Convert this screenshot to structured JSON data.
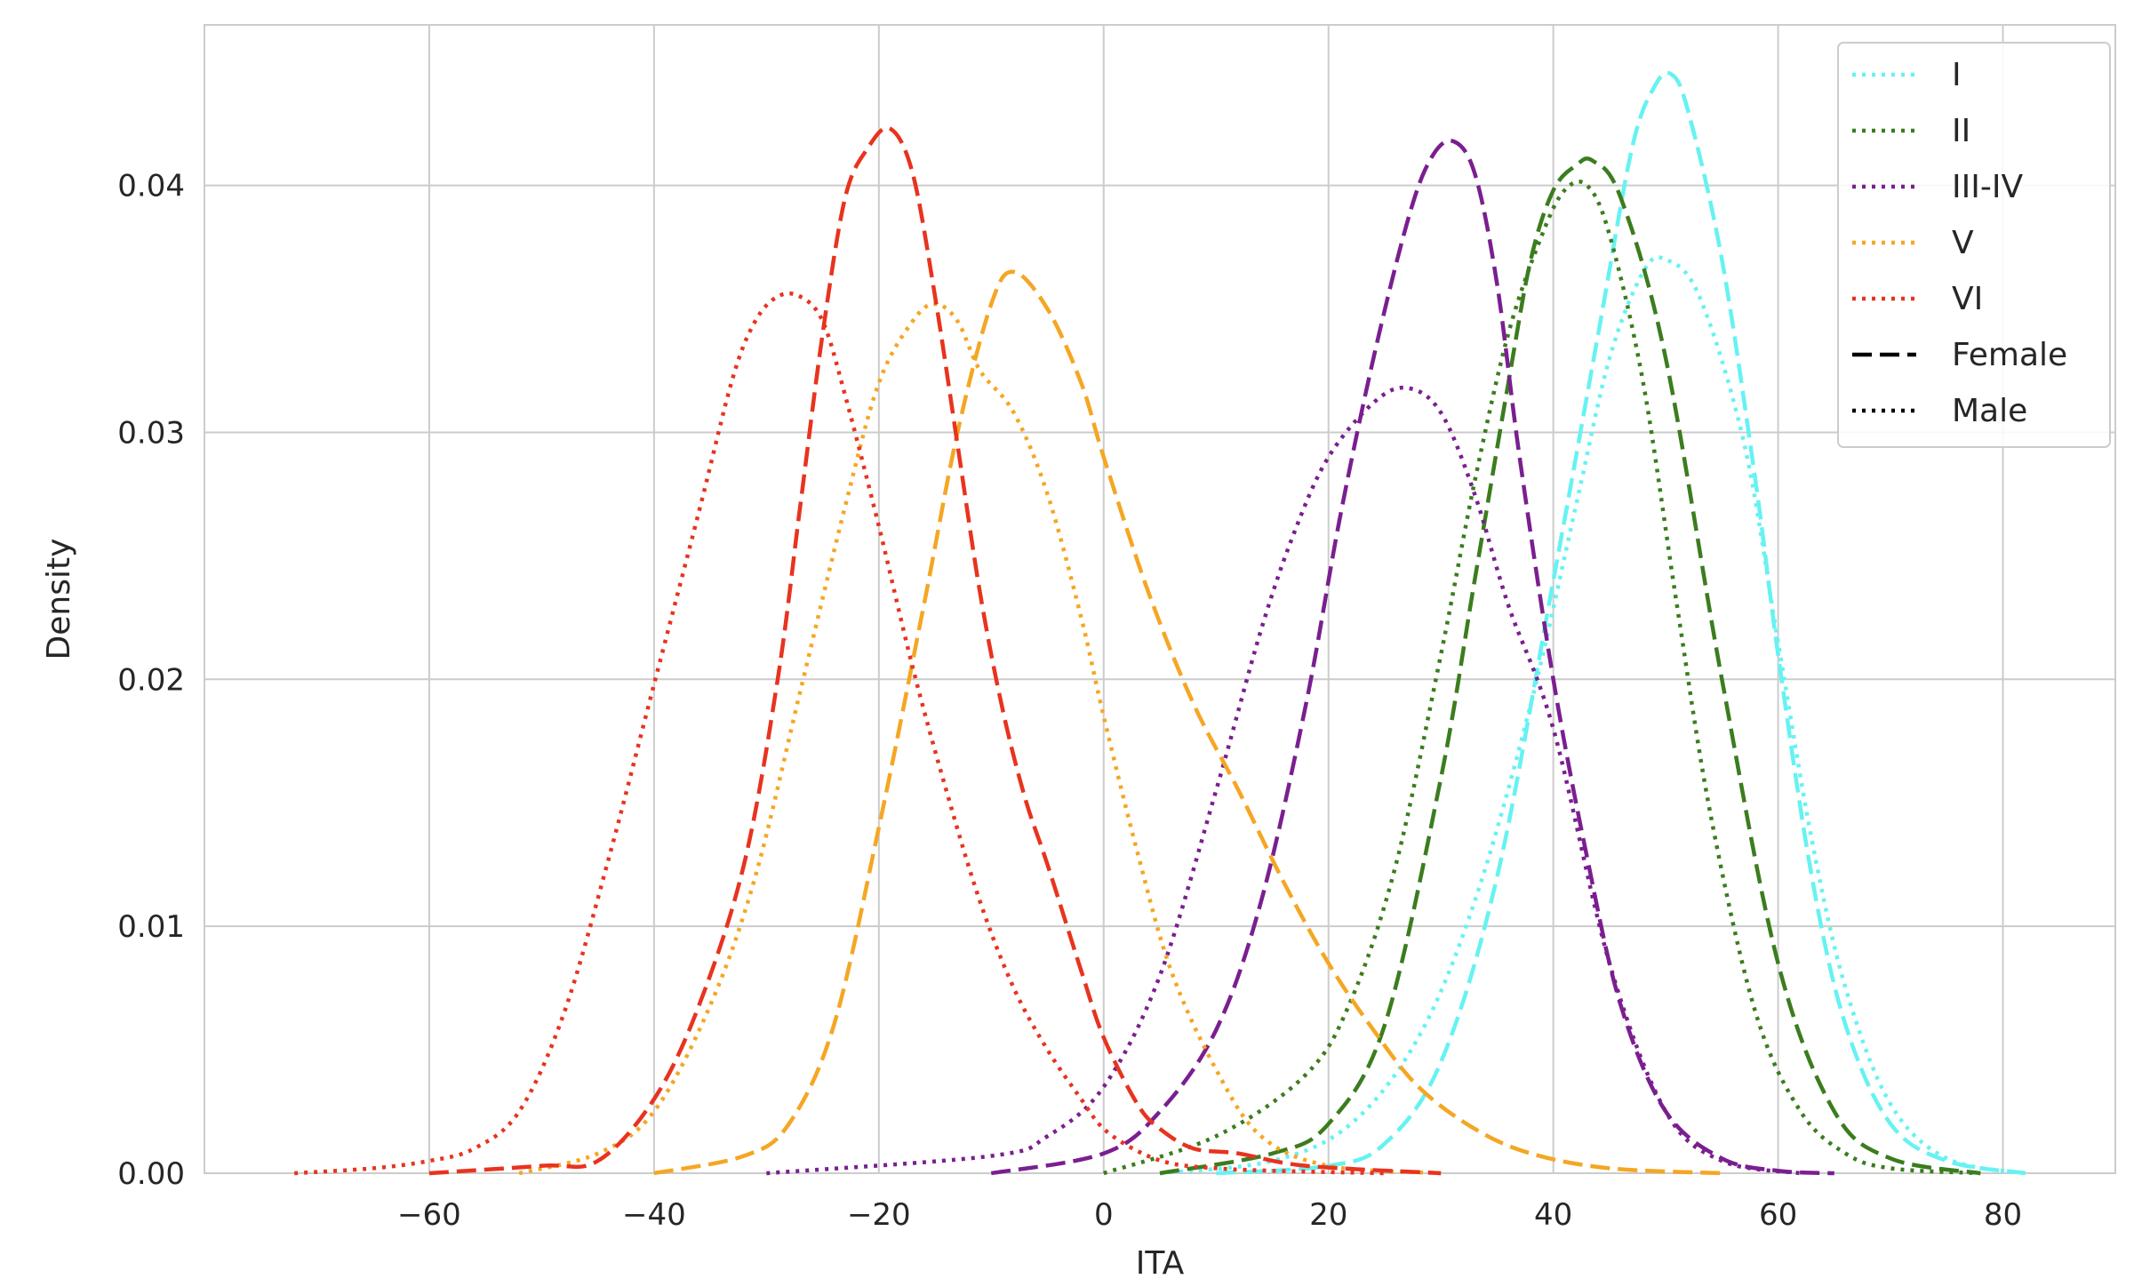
{
  "chart_data": {
    "type": "line",
    "title": "",
    "xlabel": "ITA",
    "ylabel": "Density",
    "xlim": [
      -80,
      90
    ],
    "ylim": [
      0,
      0.0465
    ],
    "xticks": [
      -60,
      -40,
      -20,
      0,
      20,
      40,
      60,
      80
    ],
    "xtick_labels": [
      "−60",
      "−40",
      "−20",
      "0",
      "20",
      "40",
      "60",
      "80"
    ],
    "yticks": [
      0,
      0.01,
      0.02,
      0.03,
      0.04
    ],
    "ytick_labels": [
      "0.00",
      "0.01",
      "0.02",
      "0.03",
      "0.04"
    ],
    "grid": true,
    "legend_position": "top-right",
    "legend": [
      {
        "label": "I",
        "color": "#66f2f2",
        "dash": "dotted"
      },
      {
        "label": "II",
        "color": "#3b7d1e",
        "dash": "dotted"
      },
      {
        "label": "III-IV",
        "color": "#7a1f8f",
        "dash": "dotted"
      },
      {
        "label": "V",
        "color": "#f5a623",
        "dash": "dotted"
      },
      {
        "label": "VI",
        "color": "#e8331e",
        "dash": "dotted"
      },
      {
        "label": "Female",
        "color": "#000000",
        "dash": "dashed"
      },
      {
        "label": "Male",
        "color": "#000000",
        "dash": "dotted"
      }
    ],
    "series": [
      {
        "name": "I",
        "sex": "Female",
        "color": "#66f2f2",
        "dash": "dashed",
        "x": [
          10,
          20,
          25,
          30,
          35,
          40,
          44,
          47,
          49,
          50.5,
          52,
          55,
          58,
          60,
          63,
          66,
          70,
          75,
          82
        ],
        "y": [
          0.0,
          0.0003,
          0.0012,
          0.0045,
          0.012,
          0.024,
          0.034,
          0.0415,
          0.044,
          0.0445,
          0.043,
          0.037,
          0.028,
          0.021,
          0.012,
          0.006,
          0.002,
          0.0005,
          0.0
        ]
      },
      {
        "name": "I",
        "sex": "Male",
        "color": "#66f2f2",
        "dash": "dotted",
        "x": [
          5,
          15,
          22,
          28,
          33,
          38,
          42,
          45,
          48,
          50,
          53,
          57,
          60,
          63,
          66,
          70,
          75,
          82
        ],
        "y": [
          0.0,
          0.0005,
          0.002,
          0.0055,
          0.011,
          0.019,
          0.027,
          0.033,
          0.0365,
          0.037,
          0.0355,
          0.0295,
          0.0215,
          0.0135,
          0.0075,
          0.0028,
          0.0006,
          0.0
        ]
      },
      {
        "name": "II",
        "sex": "Female",
        "color": "#3b7d1e",
        "dash": "dashed",
        "x": [
          5,
          15,
          20,
          25,
          30,
          33,
          36,
          38,
          40,
          42,
          43.5,
          46,
          50,
          55,
          60,
          65,
          70,
          78
        ],
        "y": [
          0.0,
          0.0008,
          0.002,
          0.006,
          0.016,
          0.024,
          0.032,
          0.037,
          0.0398,
          0.0408,
          0.041,
          0.0395,
          0.033,
          0.02,
          0.0085,
          0.0025,
          0.0006,
          0.0
        ]
      },
      {
        "name": "II",
        "sex": "Male",
        "color": "#3b7d1e",
        "dash": "dotted",
        "x": [
          0,
          10,
          18,
          22,
          26,
          30,
          33,
          36,
          39,
          41,
          43,
          45,
          48,
          51,
          54,
          58,
          62,
          66,
          70,
          78
        ],
        "y": [
          0.0,
          0.0015,
          0.004,
          0.007,
          0.0125,
          0.021,
          0.028,
          0.034,
          0.038,
          0.0398,
          0.04,
          0.038,
          0.032,
          0.023,
          0.0145,
          0.0065,
          0.0025,
          0.0008,
          0.0002,
          0.0
        ]
      },
      {
        "name": "III-IV",
        "sex": "Female",
        "color": "#7a1f8f",
        "dash": "dashed",
        "x": [
          -10,
          0,
          5,
          10,
          14,
          18,
          21,
          24,
          27,
          29,
          31,
          33,
          35,
          37,
          40,
          43,
          46,
          50,
          55,
          60,
          65
        ],
        "y": [
          0.0,
          0.0008,
          0.0025,
          0.0058,
          0.011,
          0.019,
          0.0265,
          0.033,
          0.0385,
          0.041,
          0.0418,
          0.0405,
          0.036,
          0.029,
          0.02,
          0.0128,
          0.0068,
          0.0025,
          0.0006,
          0.0001,
          0.0
        ]
      },
      {
        "name": "III-IV",
        "sex": "Male",
        "color": "#7a1f8f",
        "dash": "dotted",
        "x": [
          -30,
          -10,
          -5,
          0,
          5,
          10,
          14,
          17,
          20,
          24,
          27,
          30,
          33,
          36,
          40,
          45,
          50,
          55,
          62
        ],
        "y": [
          0.0,
          0.0007,
          0.0015,
          0.0035,
          0.008,
          0.0155,
          0.022,
          0.026,
          0.029,
          0.0312,
          0.0318,
          0.0308,
          0.0275,
          0.023,
          0.018,
          0.0085,
          0.0025,
          0.0005,
          0.0
        ]
      },
      {
        "name": "V",
        "sex": "Female",
        "color": "#f5a623",
        "dash": "dashed",
        "x": [
          -40,
          -32,
          -28,
          -24,
          -20,
          -16,
          -13,
          -10,
          -8,
          -5,
          -2,
          0,
          4,
          8,
          12,
          16,
          20,
          24,
          28,
          33,
          38,
          45,
          55
        ],
        "y": [
          0.0,
          0.0007,
          0.002,
          0.006,
          0.014,
          0.023,
          0.03,
          0.0352,
          0.0365,
          0.035,
          0.032,
          0.029,
          0.0235,
          0.019,
          0.0155,
          0.0118,
          0.0085,
          0.0058,
          0.0035,
          0.0018,
          0.0008,
          0.0002,
          0.0
        ]
      },
      {
        "name": "V",
        "sex": "Male",
        "color": "#f5a623",
        "dash": "dotted",
        "x": [
          -52,
          -45,
          -40,
          -35,
          -31,
          -27,
          -23,
          -20,
          -17,
          -15,
          -13,
          -11,
          -8,
          -5,
          -2,
          0,
          3,
          6,
          10,
          14,
          20,
          30
        ],
        "y": [
          0.0,
          0.0008,
          0.0025,
          0.0068,
          0.012,
          0.0195,
          0.027,
          0.032,
          0.0345,
          0.0352,
          0.0345,
          0.0325,
          0.0308,
          0.0275,
          0.0225,
          0.0185,
          0.013,
          0.0082,
          0.0042,
          0.0015,
          0.0003,
          0.0
        ]
      },
      {
        "name": "VI",
        "sex": "Female",
        "color": "#e8331e",
        "dash": "dashed",
        "x": [
          -60,
          -50,
          -45,
          -40,
          -36,
          -32,
          -29,
          -27,
          -25,
          -23,
          -21,
          -19,
          -17,
          -15,
          -13,
          -11,
          -9,
          -7,
          -5,
          -2,
          0,
          3,
          5,
          8,
          12,
          18,
          30
        ],
        "y": [
          0.0,
          0.0003,
          0.0005,
          0.003,
          0.0068,
          0.0125,
          0.02,
          0.027,
          0.034,
          0.0395,
          0.0415,
          0.0423,
          0.0405,
          0.0355,
          0.0295,
          0.0235,
          0.0188,
          0.0152,
          0.0125,
          0.0082,
          0.0055,
          0.0028,
          0.0018,
          0.001,
          0.0008,
          0.0003,
          0.0
        ]
      },
      {
        "name": "VI",
        "sex": "Male",
        "color": "#e8331e",
        "dash": "dotted",
        "x": [
          -72,
          -65,
          -60,
          -56,
          -52,
          -48,
          -44,
          -40,
          -36,
          -33,
          -31,
          -29,
          -27,
          -25,
          -23,
          -20,
          -17,
          -14,
          -11,
          -8,
          -5,
          -2,
          0,
          3,
          6,
          10,
          15,
          25
        ],
        "y": [
          0.0,
          0.0002,
          0.0005,
          0.001,
          0.0025,
          0.0065,
          0.0128,
          0.0198,
          0.0268,
          0.0322,
          0.0345,
          0.0355,
          0.0355,
          0.0345,
          0.0315,
          0.0262,
          0.0205,
          0.0155,
          0.011,
          0.0075,
          0.005,
          0.003,
          0.0018,
          0.0009,
          0.0004,
          0.0002,
          0.0001,
          0.0
        ]
      }
    ]
  }
}
